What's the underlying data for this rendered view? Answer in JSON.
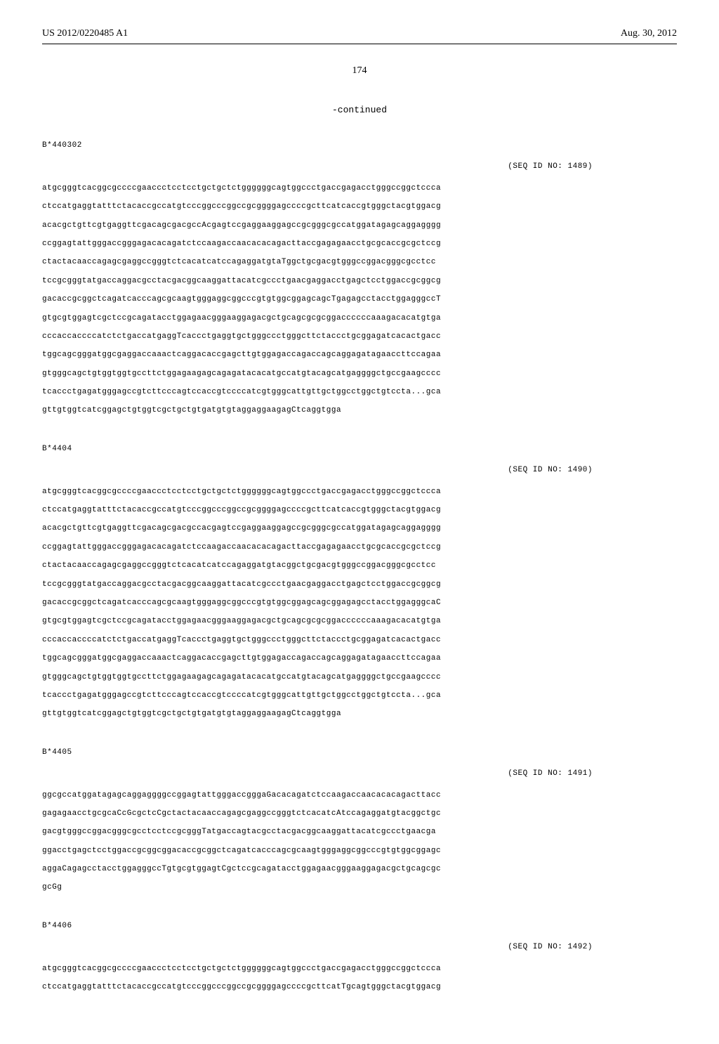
{
  "header": {
    "left": "US 2012/0220485 A1",
    "right": "Aug. 30, 2012"
  },
  "page_number": "174",
  "continued_label": "-continued",
  "sequences": [
    {
      "label": "B*440302",
      "seq_id": "(SEQ ID NO: 1489)",
      "lines": [
        "atgcgggtcacggcgccccgaaccctcctcctgctgctctggggggcagtggccctgaccgagacctgggccggctccca",
        "ctccatgaggtatttctacaccgccatgtcccggcccggccgcggggagccccgcttcatcaccgtgggctacgtggacg",
        "acacgctgttcgtgaggttcgacagcgacgccAcgagtccgaggaaggagccgcgggcgccatggatagagcaggagggg",
        "ccggagtattgggaccgggagacacagatctccaagaccaacacacagacttaccgagagaacctgcgcaccgcgctccg",
        "ctactacaaccagagcgaggccgggtctcacatcatccagaggatgtaTggctgcgacgtgggccggacgggcgcctcc",
        "tccgcgggtatgaccaggacgcctacgacggcaaggattacatcgccctgaacgaggacctgagctcctggaccgcggcg",
        "gacaccgcggctcagatcacccagcgcaagtgggaggcggcccgtgtggcggagcagcTgagagcctacctggagggccT",
        "gtgcgtggagtcgctccgcagatacctggagaacgggaaggagacgctgcagcgcgcggaccccccaaagacacatgtga",
        "cccaccaccccatctctgaccatgaggTcaccctgaggtgctgggccctgggcttctaccctgcggagatcacactgacc",
        "tggcagcgggatggcgaggaccaaactcaggacaccgagcttgtggagaccagaccagcaggagatagaaccttccagaa",
        "gtgggcagctgtggtggtgccttctggagaagagcagagatacacatgccatgtacagcatgaggggctgccgaagcccc",
        "tcaccctgagatgggagccgtcttcccagtccaccgtccccatcgtgggcattgttgctggcctggctgtccta...gca",
        "gttgtggtcatcggagctgtggtcgctgctgtgatgtgtaggaggaagagCtcaggtgga"
      ]
    },
    {
      "label": "B*4404",
      "seq_id": "(SEQ ID NO: 1490)",
      "lines": [
        "atgcgggtcacggcgccccgaaccctcctcctgctgctctggggggcagtggccctgaccgagacctgggccggctccca",
        "ctccatgaggtatttctacaccgccatgtcccggcccggccgcggggagccccgcttcatcaccgtgggctacgtggacg",
        "acacgctgttcgtgaggttcgacagcgacgccacgagtccgaggaaggagccgcgggcgccatggatagagcaggagggg",
        "ccggagtattgggaccgggagacacagatctccaagaccaacacacagacttaccgagagaacctgcgcaccgcgctccg",
        "ctactacaaccagagcgaggccgggtctcacatcatccagaggatgtacggctgcgacgtgggccggacgggcgcctcc",
        "tccgcgggtatgaccaggacgcctacgacggcaaggattacatcgccctgaacgaggacctgagctcctggaccgcggcg",
        "gacaccgcggctcagatcacccagcgcaagtgggaggcggcccgtgtggcggagcagcggagagcctacctggagggcaC",
        "gtgcgtggagtcgctccgcagatacctggagaacgggaaggagacgctgcagcgcgcggaccccccaaagacacatgtga",
        "cccaccaccccatctctgaccatgaggTcaccctgaggtgctgggccctgggcttctaccctgcggagatcacactgacc",
        "tggcagcgggatggcgaggaccaaactcaggacaccgagcttgtggagaccagaccagcaggagatagaaccttccagaa",
        "gtgggcagctgtggtggtgccttctggagaagagcagagatacacatgccatgtacagcatgaggggctgccgaagcccc",
        "tcaccctgagatgggagccgtcttcccagtccaccgtccccatcgtgggcattgttgctggcctggctgtccta...gca",
        "gttgtggtcatcggagctgtggtcgctgctgtgatgtgtaggaggaagagCtcaggtgga"
      ]
    },
    {
      "label": "B*4405",
      "seq_id": "(SEQ ID NO: 1491)",
      "lines": [
        "ggcgccatggatagagcaggaggggccggagtattgggaccgggaGacacagatctccaagaccaacacacagacttacc",
        "gagagaacctgcgcaCcGcgctcCgctactacaaccagagcgaggccgggtctcacatcAtccagaggatgtacggctgc",
        "gacgtgggccggacgggcgcctcctccgcgggTatgaccagtacgcctacgacggcaaggattacatcgccctgaacga",
        "ggacctgagctcctggaccgcggcggacaccgcggctcagatcacccagcgcaagtgggaggcggcccgtgtggcggagc",
        "aggaCagagcctacctggagggccTgtgcgtggagtCgctccgcagatacctggagaacgggaaggagacgctgcagcgc",
        "gcGg"
      ]
    },
    {
      "label": "B*4406",
      "seq_id": "(SEQ ID NO: 1492)",
      "lines": [
        "atgcgggtcacggcgccccgaaccctcctcctgctgctctggggggcagtggccctgaccgagacctgggccggctccca",
        "ctccatgaggtatttctacaccgccatgtcccggcccggccgcggggagccccgcttcatTgcagtgggctacgtggacg"
      ]
    }
  ]
}
